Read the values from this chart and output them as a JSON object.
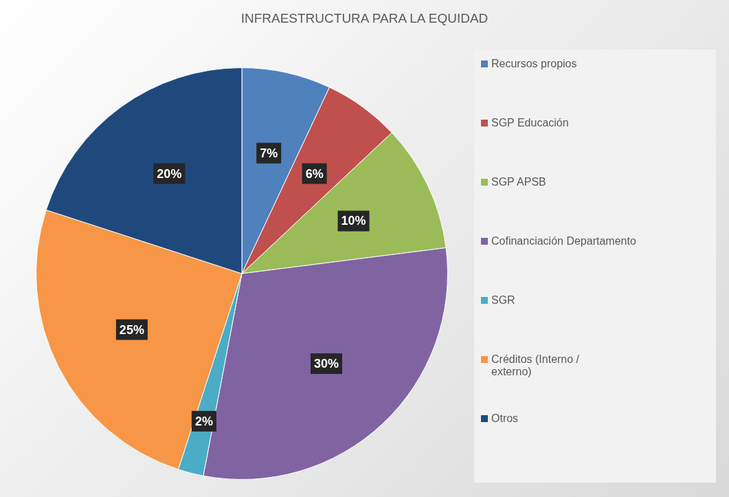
{
  "chart_data": {
    "type": "pie",
    "title": "INFRAESTRUCTURA PARA LA EQUIDAD",
    "categories": [
      "Recursos propios",
      "SGP Educación",
      "SGP APSB",
      "Cofinanciación Departamento",
      "SGR",
      "Créditos (Interno / externo)",
      "Otros"
    ],
    "values": [
      7,
      6,
      10,
      30,
      2,
      25,
      20
    ],
    "colors": [
      "#4f81bd",
      "#c0504d",
      "#9bbb59",
      "#8064a2",
      "#4bacc6",
      "#f79646",
      "#1f497d"
    ],
    "value_labels": [
      "7%",
      "6%",
      "10%",
      "30%",
      "2%",
      "25%",
      "20%"
    ],
    "legend": "right"
  }
}
